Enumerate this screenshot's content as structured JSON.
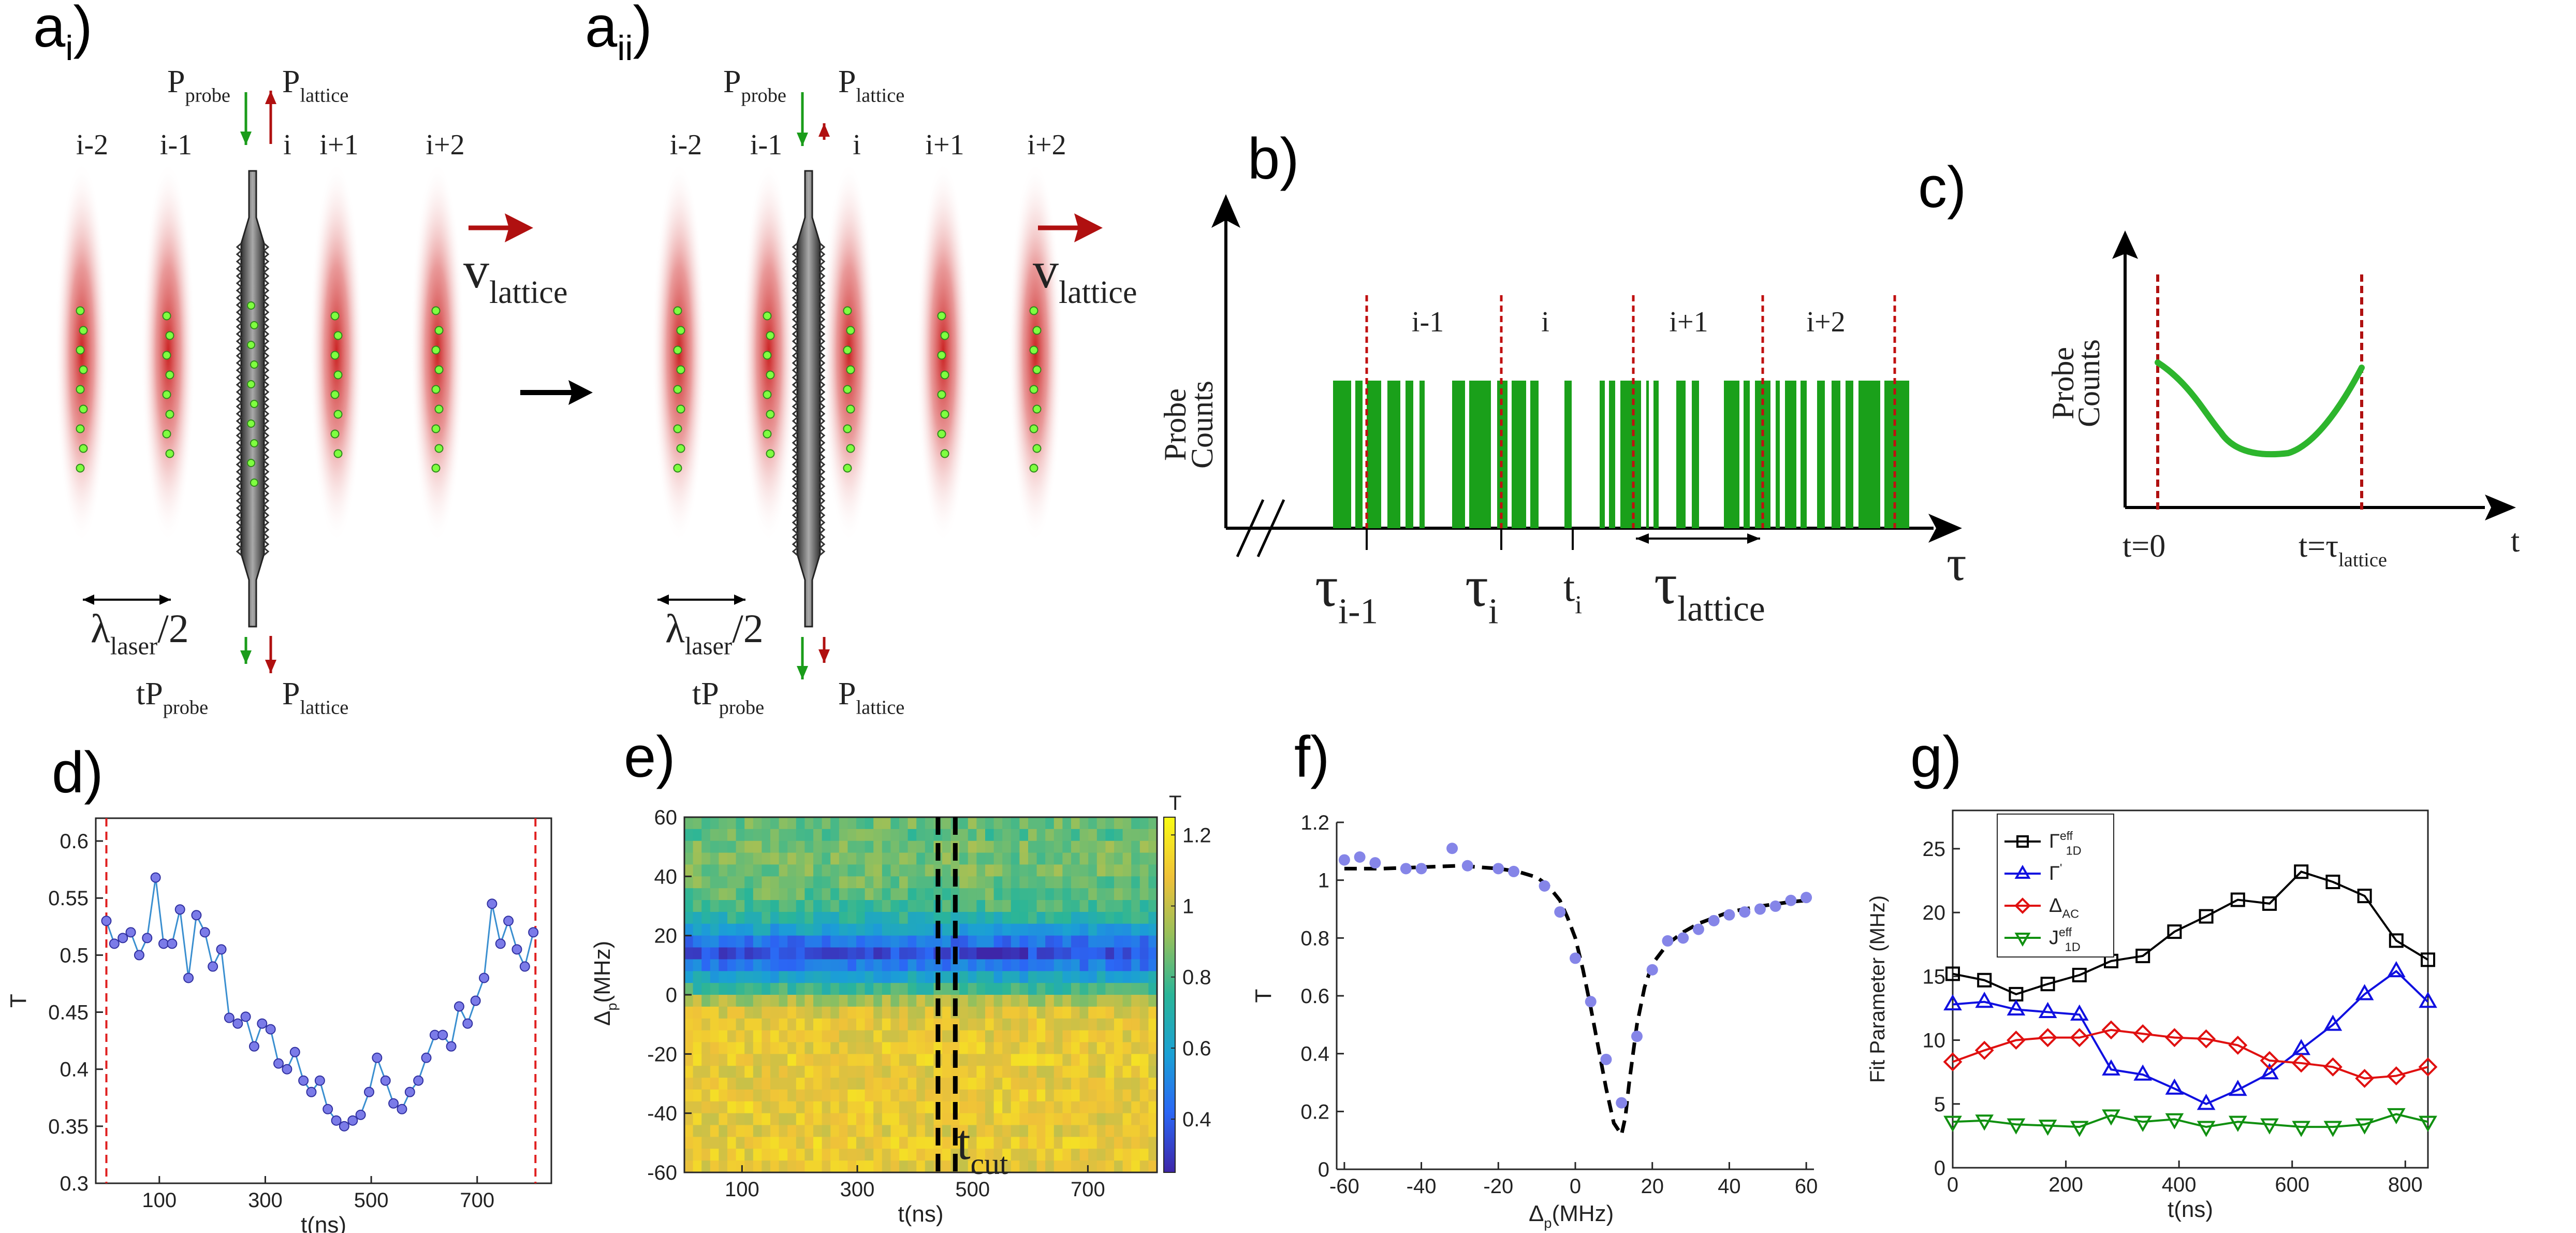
{
  "figure": {
    "panel_labels": {
      "ai": {
        "main": "a",
        "sub": "i",
        "close": ")"
      },
      "aii": {
        "main": "a",
        "sub": "ii",
        "close": ")"
      },
      "b": "b)",
      "c": "c)",
      "d": "d)",
      "e": "e)",
      "f": "f)",
      "g": "g)"
    },
    "schematic": {
      "site_labels": [
        "i-2",
        "i-1",
        "i",
        "i+1",
        "i+2"
      ],
      "p_probe": {
        "main": "P",
        "sub": "probe"
      },
      "p_lattice": {
        "main": "P",
        "sub": "lattice"
      },
      "tp_probe": {
        "main": "tP",
        "sub": "probe"
      },
      "v_lattice": {
        "main": "v",
        "sub": "lattice"
      },
      "lambda": {
        "main": "λ",
        "sub": "laser",
        "tail": "/2"
      },
      "colors": {
        "probe_arrow": "#1a9c1a",
        "lattice_arrow": "#b01010",
        "site_glow": "#cc2020",
        "atom": "#7fff40",
        "fiber": "#555555"
      }
    },
    "panel_b": {
      "ylabel_lines": [
        "Probe",
        "Counts"
      ],
      "site_labels": [
        "i-1",
        "i",
        "i+1",
        "i+2"
      ],
      "tick_labels": [
        {
          "main": "τ",
          "sub": "i-1"
        },
        {
          "main": "τ",
          "sub": "i"
        },
        {
          "main": "t",
          "sub": "i"
        },
        {
          "main": "τ",
          "sub": "lattice"
        }
      ],
      "axis_label": "τ",
      "bar_color": "#1aa01a",
      "marker_color": "#c01010"
    },
    "panel_c": {
      "ylabel_lines": [
        "Probe",
        "Counts"
      ],
      "t0_label": "t=0",
      "tlat_label": {
        "main": "t=τ",
        "sub": "lattice"
      },
      "axis_label": "t",
      "curve_color": "#2db52d"
    }
  },
  "chart_data": [
    {
      "panel": "d",
      "type": "line",
      "xlabel": "t(ns)",
      "ylabel": "T",
      "xlim": [
        -20,
        840
      ],
      "ylim": [
        0.3,
        0.62
      ],
      "xticks": [
        100,
        300,
        500,
        700
      ],
      "yticks": [
        0.3,
        0.35,
        0.4,
        0.45,
        0.5,
        0.55,
        0.6
      ],
      "vlines": [
        0,
        810
      ],
      "vline_color": "#e02020",
      "series": [
        {
          "color": "#3a8fd0",
          "marker_color": "#7b7be8",
          "x": [
            0,
            15,
            31,
            46,
            62,
            77,
            93,
            108,
            124,
            139,
            155,
            170,
            186,
            201,
            217,
            232,
            248,
            263,
            279,
            294,
            310,
            325,
            341,
            356,
            372,
            387,
            403,
            418,
            434,
            449,
            465,
            480,
            496,
            511,
            527,
            542,
            558,
            573,
            589,
            604,
            620,
            635,
            651,
            666,
            682,
            697,
            713,
            728,
            744,
            759,
            775,
            790,
            806
          ],
          "y": [
            0.53,
            0.51,
            0.515,
            0.52,
            0.5,
            0.515,
            0.568,
            0.51,
            0.51,
            0.54,
            0.48,
            0.535,
            0.52,
            0.49,
            0.505,
            0.445,
            0.44,
            0.446,
            0.42,
            0.44,
            0.435,
            0.405,
            0.4,
            0.415,
            0.39,
            0.38,
            0.39,
            0.365,
            0.355,
            0.35,
            0.355,
            0.36,
            0.38,
            0.41,
            0.39,
            0.37,
            0.365,
            0.38,
            0.39,
            0.41,
            0.43,
            0.43,
            0.42,
            0.455,
            0.44,
            0.46,
            0.48,
            0.545,
            0.51,
            0.53,
            0.505,
            0.49,
            0.52
          ]
        }
      ]
    },
    {
      "panel": "e",
      "type": "heatmap",
      "xlabel": "t(ns)",
      "ylabel": {
        "main": "Δ",
        "sub": "p",
        "tail": "(MHz)"
      },
      "xlim": [
        0,
        820
      ],
      "ylim": [
        -60,
        60
      ],
      "xticks": [
        100,
        300,
        500,
        700
      ],
      "yticks": [
        -60,
        -40,
        -20,
        0,
        20,
        40,
        60
      ],
      "colorbar": {
        "label": "T",
        "range": [
          0.25,
          1.25
        ],
        "ticks": [
          0.4,
          0.6,
          0.8,
          1,
          1.2
        ],
        "colors": [
          "#3e26a8",
          "#2b67f5",
          "#1ba0d5",
          "#2ab598",
          "#98c05a",
          "#efc139",
          "#f9fb14"
        ]
      },
      "vlines": [
        440,
        470
      ],
      "annotation": {
        "main": "t",
        "sub": "cut"
      },
      "rows_top_to_bottom": [
        {
          "delta": 58,
          "value": 0.85
        },
        {
          "delta": 54,
          "value": 0.83
        },
        {
          "delta": 50,
          "value": 0.88
        },
        {
          "delta": 46,
          "value": 0.86
        },
        {
          "delta": 42,
          "value": 0.87
        },
        {
          "delta": 38,
          "value": 0.85
        },
        {
          "delta": 34,
          "value": 0.83
        },
        {
          "delta": 30,
          "value": 0.79
        },
        {
          "delta": 26,
          "value": 0.72
        },
        {
          "delta": 22,
          "value": 0.6
        },
        {
          "delta": 18,
          "value": 0.45
        },
        {
          "delta": 14,
          "value": 0.36
        },
        {
          "delta": 10,
          "value": 0.47
        },
        {
          "delta": 6,
          "value": 0.62
        },
        {
          "delta": 2,
          "value": 0.77
        },
        {
          "delta": -2,
          "value": 0.95
        },
        {
          "delta": -6,
          "value": 1.05
        },
        {
          "delta": -10,
          "value": 1.08
        },
        {
          "delta": -14,
          "value": 1.08
        },
        {
          "delta": -18,
          "value": 1.09
        },
        {
          "delta": -22,
          "value": 1.1
        },
        {
          "delta": -26,
          "value": 1.08
        },
        {
          "delta": -30,
          "value": 1.08
        },
        {
          "delta": -34,
          "value": 1.09
        },
        {
          "delta": -38,
          "value": 1.1
        },
        {
          "delta": -42,
          "value": 1.08
        },
        {
          "delta": -46,
          "value": 1.07
        },
        {
          "delta": -50,
          "value": 1.1
        },
        {
          "delta": -54,
          "value": 1.09
        },
        {
          "delta": -58,
          "value": 1.08
        }
      ]
    },
    {
      "panel": "f",
      "type": "scatter",
      "xlabel": {
        "main": "Δ",
        "sub": "p",
        "tail": "(MHz)"
      },
      "ylabel": "T",
      "xlim": [
        -62,
        62
      ],
      "ylim": [
        0,
        1.2
      ],
      "xticks": [
        -60,
        -40,
        -20,
        0,
        20,
        40,
        60
      ],
      "yticks": [
        0,
        0.2,
        0.4,
        0.6,
        0.8,
        1,
        1.2
      ],
      "points_color": "#8585e8",
      "fit_color": "#000000",
      "points": {
        "x": [
          -60,
          -56,
          -52,
          -44,
          -40,
          -32,
          -28,
          -20,
          -16,
          -8,
          -4,
          0,
          4,
          8,
          12,
          16,
          20,
          24,
          28,
          32,
          36,
          40,
          44,
          48,
          52,
          56,
          60
        ],
        "y": [
          1.07,
          1.08,
          1.06,
          1.04,
          1.04,
          1.11,
          1.05,
          1.04,
          1.03,
          0.98,
          0.89,
          0.73,
          0.58,
          0.38,
          0.23,
          0.46,
          0.69,
          0.79,
          0.8,
          0.83,
          0.86,
          0.88,
          0.89,
          0.9,
          0.91,
          0.93,
          0.94
        ]
      },
      "fit": {
        "x": [
          -60,
          -50,
          -40,
          -30,
          -20,
          -15,
          -10,
          -7,
          -4,
          -2,
          0,
          2,
          4,
          6,
          8,
          10,
          12,
          13,
          14,
          16,
          18,
          20,
          24,
          28,
          32,
          36,
          40,
          48,
          56,
          60
        ],
        "y": [
          1.04,
          1.04,
          1.045,
          1.05,
          1.04,
          1.03,
          1.01,
          0.98,
          0.93,
          0.87,
          0.8,
          0.69,
          0.56,
          0.42,
          0.28,
          0.16,
          0.12,
          0.18,
          0.3,
          0.5,
          0.63,
          0.71,
          0.78,
          0.82,
          0.85,
          0.87,
          0.89,
          0.91,
          0.925,
          0.93
        ]
      }
    },
    {
      "panel": "g",
      "type": "line",
      "xlabel": "t(ns)",
      "ylabel": "Fit Parameter (MHz)",
      "xlim": [
        0,
        840
      ],
      "ylim": [
        0,
        28
      ],
      "xticks": [
        0,
        200,
        400,
        600,
        800
      ],
      "yticks": [
        0,
        5,
        10,
        15,
        20,
        25
      ],
      "legend_position": "top-left",
      "x": [
        0,
        56,
        112,
        168,
        224,
        280,
        336,
        392,
        448,
        504,
        560,
        616,
        672,
        728,
        784,
        840
      ],
      "series": [
        {
          "legend": {
            "main": "Γ",
            "sub": "1D",
            "sup": "eff"
          },
          "color": "#000000",
          "marker": "square",
          "values": [
            15.2,
            14.7,
            13.6,
            14.4,
            15.1,
            16.2,
            16.6,
            18.5,
            19.7,
            21.0,
            20.7,
            23.2,
            22.4,
            21.3,
            17.8,
            16.3
          ]
        },
        {
          "legend": {
            "main": "Γ",
            "sup": "'"
          },
          "color": "#1010e0",
          "marker": "triangle-up",
          "values": [
            12.8,
            13.0,
            12.4,
            12.2,
            12.0,
            7.7,
            7.3,
            6.2,
            5.0,
            6.1,
            7.4,
            9.3,
            11.2,
            13.6,
            15.4,
            13.0
          ]
        },
        {
          "legend": {
            "main": "Δ",
            "sub": "AC"
          },
          "color": "#e01010",
          "marker": "diamond",
          "values": [
            8.3,
            9.2,
            10.0,
            10.2,
            10.2,
            10.8,
            10.5,
            10.2,
            10.1,
            9.6,
            8.4,
            8.2,
            7.9,
            7.0,
            7.2,
            7.9
          ]
        },
        {
          "legend": {
            "main": "J",
            "sub": "1D",
            "sup": "eff"
          },
          "color": "#109010",
          "marker": "triangle-down",
          "values": [
            3.6,
            3.7,
            3.4,
            3.3,
            3.2,
            4.1,
            3.6,
            3.8,
            3.2,
            3.6,
            3.4,
            3.2,
            3.2,
            3.4,
            4.2,
            3.6
          ]
        }
      ]
    }
  ]
}
